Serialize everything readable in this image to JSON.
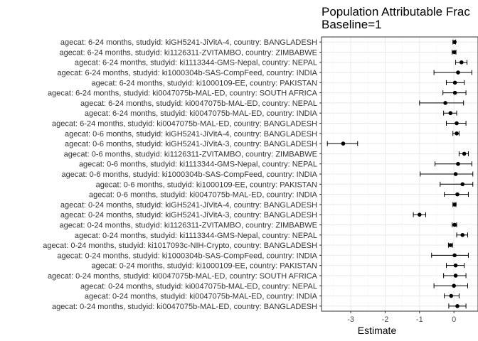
{
  "chart_data": {
    "type": "forest",
    "title_lines": [
      "Population Attributable Frac",
      "Baseline=1"
    ],
    "xlabel": "Estimate",
    "ylabel": "",
    "xlim": [
      -3.85,
      0.7
    ],
    "xticks": [
      -3,
      -2,
      -1,
      0
    ],
    "grid": true,
    "legend": "none",
    "colors": {
      "point": "#000000",
      "grid_major": "#ebebeb",
      "grid_minor": "#f5f5f5",
      "panel_border": "#333333"
    },
    "rows": [
      {
        "label": "agecat: 6-24 months, studyid: kiGH5241-JiVitA-4, country: BANGLADESH",
        "estimate": 0.02,
        "lower": -0.03,
        "upper": 0.05
      },
      {
        "label": "agecat: 6-24 months, studyid: ki1126311-ZVITAMBO, country: ZIMBABWE",
        "estimate": 0.01,
        "lower": -0.05,
        "upper": 0.06
      },
      {
        "label": "agecat: 6-24 months, studyid: ki1113344-GMS-Nepal, country: NEPAL",
        "estimate": 0.22,
        "lower": 0.05,
        "upper": 0.38
      },
      {
        "label": "agecat: 6-24 months, studyid: ki1000304b-SAS-CompFeed, country: INDIA",
        "estimate": 0.12,
        "lower": -0.58,
        "upper": 0.52
      },
      {
        "label": "agecat: 6-24 months, studyid: ki1000109-EE, country: PAKISTAN",
        "estimate": 0.03,
        "lower": -0.22,
        "upper": 0.3
      },
      {
        "label": "agecat: 6-24 months, studyid: ki0047075b-MAL-ED, country: SOUTH AFRICA",
        "estimate": 0.03,
        "lower": -0.32,
        "upper": 0.35
      },
      {
        "label": "agecat: 6-24 months, studyid: ki0047075b-MAL-ED, country: NEPAL",
        "estimate": -0.25,
        "lower": -1.0,
        "upper": 0.28
      },
      {
        "label": "agecat: 6-24 months, studyid: ki0047075b-MAL-ED, country: INDIA",
        "estimate": -0.1,
        "lower": -0.3,
        "upper": 0.08
      },
      {
        "label": "agecat: 6-24 months, studyid: ki0047075b-MAL-ED, country: BANGLADESH",
        "estimate": 0.08,
        "lower": -0.22,
        "upper": 0.35
      },
      {
        "label": "agecat: 0-6 months, studyid: kiGH5241-JiVitA-4, country: BANGLADESH",
        "estimate": 0.08,
        "lower": -0.03,
        "upper": 0.15
      },
      {
        "label": "agecat: 0-6 months, studyid: kiGH5241-JiVitA-3, country: BANGLADESH",
        "estimate": -3.22,
        "lower": -3.68,
        "upper": -2.8
      },
      {
        "label": "agecat: 0-6 months, studyid: ki1126311-ZVITAMBO, country: ZIMBABWE",
        "estimate": 0.3,
        "lower": 0.15,
        "upper": 0.42
      },
      {
        "label": "agecat: 0-6 months, studyid: ki1113344-GMS-Nepal, country: NEPAL",
        "estimate": 0.12,
        "lower": -0.55,
        "upper": 0.52
      },
      {
        "label": "agecat: 0-6 months, studyid: ki1000304b-SAS-CompFeed, country: INDIA",
        "estimate": 0.05,
        "lower": -0.98,
        "upper": 0.55
      },
      {
        "label": "agecat: 0-6 months, studyid: ki1000109-EE, country: PAKISTAN",
        "estimate": 0.25,
        "lower": -0.4,
        "upper": 0.55
      },
      {
        "label": "agecat: 0-6 months, studyid: ki0047075b-MAL-ED, country: INDIA",
        "estimate": 0.1,
        "lower": -0.28,
        "upper": 0.42
      },
      {
        "label": "agecat: 0-24 months, studyid: kiGH5241-JiVitA-4, country: BANGLADESH",
        "estimate": 0.02,
        "lower": -0.03,
        "upper": 0.06
      },
      {
        "label": "agecat: 0-24 months, studyid: kiGH5241-JiVitA-3, country: BANGLADESH",
        "estimate": -1.0,
        "lower": -1.18,
        "upper": -0.82
      },
      {
        "label": "agecat: 0-24 months, studyid: ki1126311-ZVITAMBO, country: ZIMBABWE",
        "estimate": 0.02,
        "lower": -0.05,
        "upper": 0.08
      },
      {
        "label": "agecat: 0-24 months, studyid: ki1113344-GMS-Nepal, country: NEPAL",
        "estimate": 0.25,
        "lower": 0.08,
        "upper": 0.4
      },
      {
        "label": "agecat: 0-24 months, studyid: ki1017093c-NIH-Crypto, country: BANGLADESH",
        "estimate": -0.1,
        "lower": -0.16,
        "upper": -0.04
      },
      {
        "label": "agecat: 0-24 months, studyid: ki1000304b-SAS-CompFeed, country: INDIA",
        "estimate": 0.02,
        "lower": -0.65,
        "upper": 0.42
      },
      {
        "label": "agecat: 0-24 months, studyid: ki1000109-EE, country: PAKISTAN",
        "estimate": 0.05,
        "lower": -0.22,
        "upper": 0.3
      },
      {
        "label": "agecat: 0-24 months, studyid: ki0047075b-MAL-ED, country: SOUTH AFRICA",
        "estimate": 0.05,
        "lower": -0.3,
        "upper": 0.35
      },
      {
        "label": "agecat: 0-24 months, studyid: ki0047075b-MAL-ED, country: NEPAL",
        "estimate": 0.0,
        "lower": -0.58,
        "upper": 0.4
      },
      {
        "label": "agecat: 0-24 months, studyid: ki0047075b-MAL-ED, country: INDIA",
        "estimate": -0.08,
        "lower": -0.28,
        "upper": 0.15
      },
      {
        "label": "agecat: 0-24 months, studyid: ki0047075b-MAL-ED, country: BANGLADESH",
        "estimate": 0.1,
        "lower": -0.15,
        "upper": 0.35
      }
    ]
  }
}
